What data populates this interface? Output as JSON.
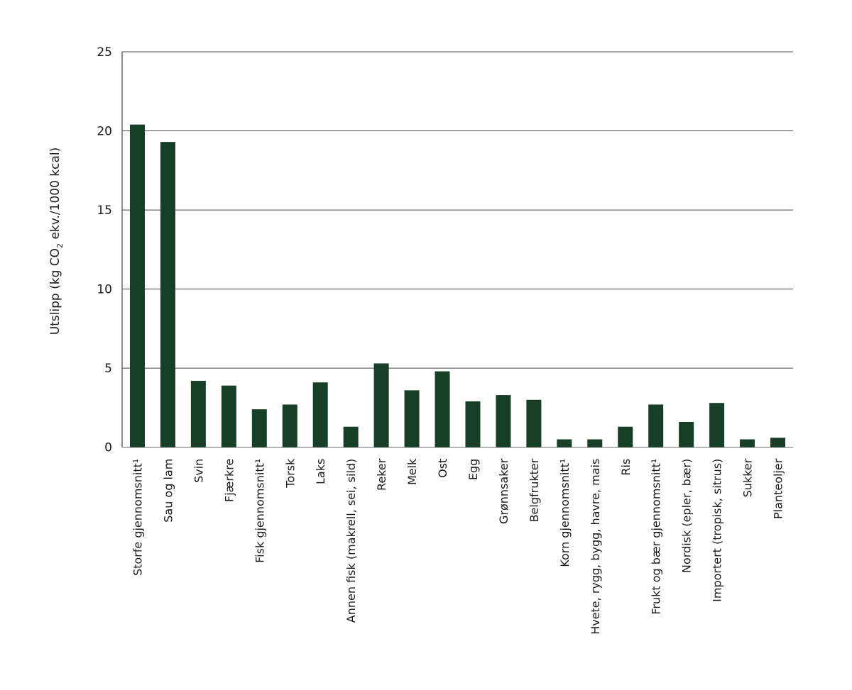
{
  "chart_data": {
    "type": "bar",
    "title": "",
    "xlabel": "",
    "ylabel": "Utslipp (kg CO",
    "ylabel_sub": "2",
    "ylabel_suffix": " ekv./1000 kcal)",
    "ylim": [
      0,
      25
    ],
    "yticks": [
      0,
      5,
      10,
      15,
      20,
      25
    ],
    "grid": true,
    "bar_color": "#173f27",
    "categories": [
      "Storfe gjennomsnitt¹",
      "Sau og lam",
      "Svin",
      "Fjærkre",
      "Fisk gjennomsnitt¹",
      "Torsk",
      "Laks",
      "Annen fisk (makrell, sei, sild)",
      "Reker",
      "Melk",
      "Ost",
      "Egg",
      "Grønnsaker",
      "Belgfrukter",
      "Korn gjennomsnitt¹",
      "Hvete, rygg, bygg, havre, mais",
      "Ris",
      "Frukt og bær gjennomsnitt¹",
      "Nordisk (epler, bær)",
      "Importert (tropisk, sitrus)",
      "Sukker",
      "Planteoljer"
    ],
    "values": [
      20.4,
      19.3,
      4.2,
      3.9,
      2.4,
      2.7,
      4.1,
      1.3,
      5.3,
      3.6,
      4.8,
      2.9,
      3.3,
      3.0,
      0.5,
      0.5,
      1.3,
      2.7,
      1.6,
      2.8,
      0.5,
      0.6
    ]
  }
}
